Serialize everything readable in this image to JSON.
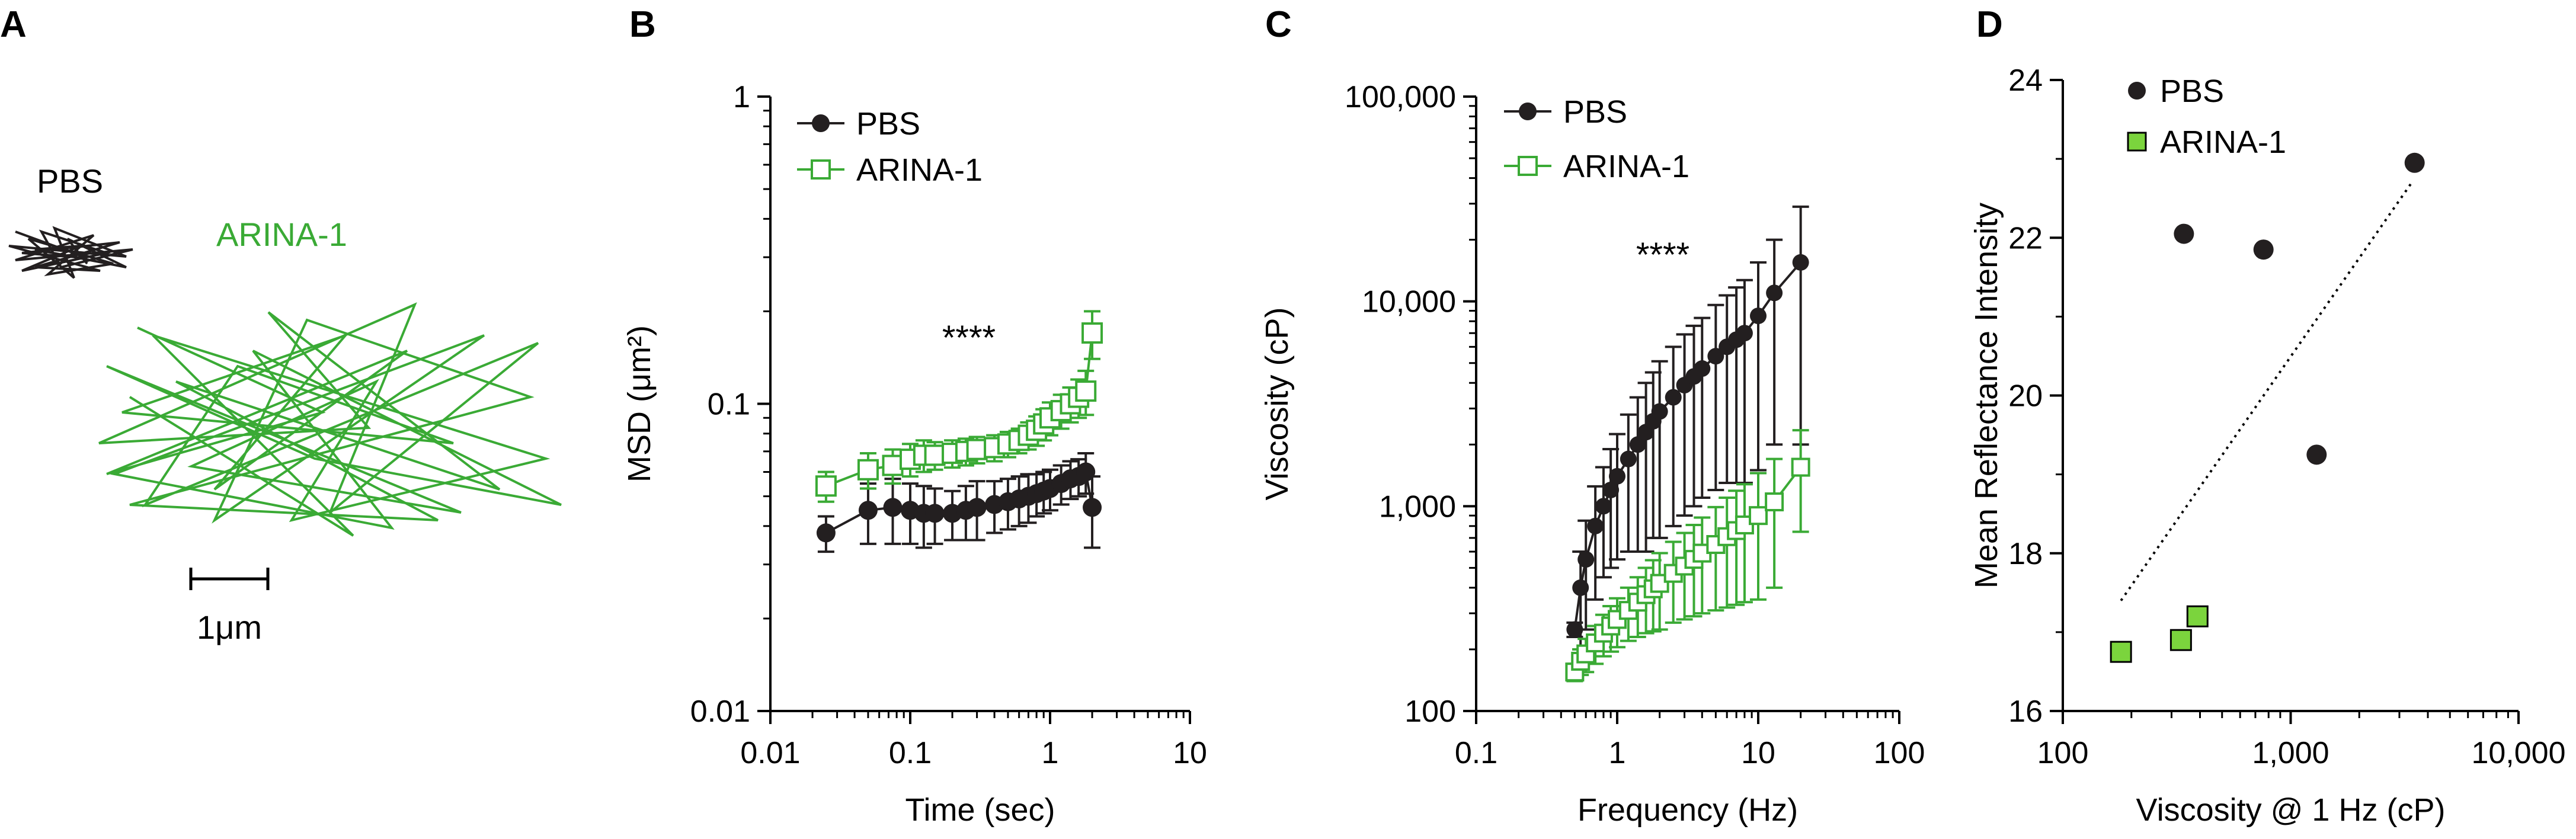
{
  "colors": {
    "pbs": "#231f20",
    "arina": "#3aaa35",
    "arina_fill": "#7bd43d",
    "axis": "#000000"
  },
  "chart_data": [
    {
      "panel": "A",
      "type": "scatter",
      "description_labels": {
        "pbs": "PBS",
        "arina": "ARINA-1",
        "scale": "1μm"
      },
      "trajectory_units": "μm",
      "pbs_path": [
        [
          0.05,
          0.05
        ],
        [
          0.6,
          0.42
        ],
        [
          0.1,
          0.35
        ],
        [
          0.85,
          0.2
        ],
        [
          0.2,
          0.55
        ],
        [
          0.7,
          0.6
        ],
        [
          0.0,
          0.25
        ],
        [
          0.9,
          0.4
        ],
        [
          0.35,
          0.0
        ],
        [
          0.5,
          0.7
        ],
        [
          0.15,
          0.15
        ],
        [
          0.8,
          0.5
        ],
        [
          0.3,
          0.65
        ],
        [
          0.65,
          0.1
        ],
        [
          0.05,
          0.45
        ],
        [
          0.95,
          0.3
        ],
        [
          0.4,
          0.55
        ],
        [
          0.25,
          0.05
        ],
        [
          0.75,
          0.35
        ],
        [
          0.1,
          0.6
        ],
        [
          0.55,
          0.25
        ],
        [
          0.2,
          0.3
        ],
        [
          0.9,
          0.55
        ],
        [
          0.45,
          0.15
        ],
        [
          0.6,
          0.5
        ]
      ],
      "arina_path": [
        [
          0.9,
          0.1
        ],
        [
          3.3,
          1.2
        ],
        [
          0.5,
          2.0
        ],
        [
          4.4,
          0.4
        ],
        [
          1.9,
          2.2
        ],
        [
          3.6,
          0.2
        ],
        [
          0.7,
          1.2
        ],
        [
          5.0,
          1.6
        ],
        [
          2.2,
          0.6
        ],
        [
          1.0,
          2.4
        ],
        [
          6.1,
          0.3
        ],
        [
          3.4,
          2.5
        ],
        [
          4.5,
          -0.2
        ],
        [
          0.4,
          1.6
        ],
        [
          3.9,
          1.4
        ],
        [
          2.6,
          -0.1
        ],
        [
          5.6,
          2.2
        ],
        [
          1.4,
          0.8
        ],
        [
          4.8,
          2.6
        ],
        [
          0.8,
          2.4
        ],
        [
          6.0,
          1.0
        ],
        [
          3.1,
          0.0
        ],
        [
          1.9,
          2.6
        ],
        [
          5.4,
          0.2
        ],
        [
          0.6,
          2.0
        ],
        [
          4.2,
          2.7
        ],
        [
          2.4,
          0.4
        ],
        [
          6.4,
          2.4
        ],
        [
          3.2,
          1.8
        ],
        [
          0.5,
          0.6
        ],
        [
          5.1,
          2.5
        ],
        [
          1.6,
          1.9
        ],
        [
          4.0,
          0.8
        ],
        [
          2.9,
          2.6
        ],
        [
          6.2,
          1.8
        ],
        [
          1.1,
          0.2
        ],
        [
          3.7,
          2.8
        ],
        [
          0.8,
          1.0
        ]
      ]
    },
    {
      "panel": "B",
      "type": "scatter",
      "title": "****",
      "xlabel": "Time (sec)",
      "ylabel": "MSD (μm²)",
      "xscale": "log",
      "yscale": "log",
      "xlim": [
        0.01,
        10
      ],
      "ylim": [
        0.01,
        1
      ],
      "xticks": [
        "0.01",
        "0.1",
        "1",
        "10"
      ],
      "yticks": [
        "0.01",
        "0.1",
        "1"
      ],
      "legend": [
        "PBS",
        "ARINA-1"
      ],
      "legend_position": "top-right",
      "series": [
        {
          "name": "PBS",
          "marker": "filled-circle",
          "x": [
            0.025,
            0.05,
            0.075,
            0.1,
            0.125,
            0.15,
            0.2,
            0.25,
            0.3,
            0.4,
            0.5,
            0.6,
            0.7,
            0.8,
            0.9,
            1.0,
            1.2,
            1.4,
            1.6,
            1.8,
            2.0
          ],
          "y": [
            0.038,
            0.045,
            0.046,
            0.045,
            0.044,
            0.044,
            0.044,
            0.045,
            0.046,
            0.047,
            0.048,
            0.049,
            0.05,
            0.051,
            0.052,
            0.053,
            0.055,
            0.057,
            0.058,
            0.06,
            0.046
          ],
          "err": [
            0.005,
            0.01,
            0.011,
            0.01,
            0.01,
            0.009,
            0.008,
            0.009,
            0.01,
            0.009,
            0.009,
            0.009,
            0.009,
            0.008,
            0.008,
            0.008,
            0.008,
            0.008,
            0.008,
            0.009,
            0.012
          ]
        },
        {
          "name": "ARINA-1",
          "marker": "open-square",
          "x": [
            0.025,
            0.05,
            0.075,
            0.1,
            0.125,
            0.15,
            0.2,
            0.25,
            0.3,
            0.4,
            0.5,
            0.6,
            0.7,
            0.8,
            0.9,
            1.0,
            1.2,
            1.4,
            1.6,
            1.8,
            2.0
          ],
          "y": [
            0.054,
            0.061,
            0.063,
            0.066,
            0.068,
            0.068,
            0.069,
            0.07,
            0.071,
            0.072,
            0.074,
            0.076,
            0.079,
            0.082,
            0.086,
            0.09,
            0.095,
            0.1,
            0.105,
            0.11,
            0.17
          ],
          "err": [
            0.006,
            0.008,
            0.008,
            0.008,
            0.008,
            0.007,
            0.007,
            0.007,
            0.007,
            0.007,
            0.007,
            0.007,
            0.008,
            0.009,
            0.01,
            0.011,
            0.012,
            0.013,
            0.015,
            0.018,
            0.03
          ]
        }
      ]
    },
    {
      "panel": "C",
      "type": "scatter",
      "title": "****",
      "xlabel": "Frequency (Hz)",
      "ylabel": "Viscosity (cP)",
      "xscale": "log",
      "yscale": "log",
      "xlim": [
        0.1,
        100
      ],
      "ylim": [
        100,
        100000
      ],
      "xticks": [
        "0.1",
        "1",
        "10",
        "100"
      ],
      "yticks": [
        "100",
        "1,000",
        "10,000",
        "100,000"
      ],
      "legend": [
        "PBS",
        "ARINA-1"
      ],
      "legend_position": "top-right",
      "series": [
        {
          "name": "PBS",
          "marker": "filled-circle",
          "x": [
            0.5,
            0.55,
            0.6,
            0.7,
            0.8,
            0.9,
            1.0,
            1.2,
            1.4,
            1.6,
            1.8,
            2.0,
            2.5,
            3.0,
            3.5,
            4.0,
            5.0,
            6.0,
            7.0,
            8.0,
            10,
            13,
            20
          ],
          "y": [
            250,
            400,
            550,
            800,
            1000,
            1200,
            1400,
            1700,
            2000,
            2300,
            2600,
            2900,
            3400,
            3900,
            4300,
            4700,
            5400,
            6000,
            6500,
            7000,
            8500,
            11000,
            15500
          ],
          "err": [
            20,
            200,
            300,
            450,
            550,
            700,
            850,
            1100,
            1400,
            1700,
            1900,
            2200,
            2600,
            3000,
            3300,
            3600,
            4200,
            4700,
            5200,
            5700,
            7000,
            9000,
            13500
          ]
        },
        {
          "name": "ARINA-1",
          "marker": "open-square",
          "x": [
            0.5,
            0.55,
            0.6,
            0.7,
            0.8,
            0.9,
            1.0,
            1.2,
            1.4,
            1.6,
            1.8,
            2.0,
            2.5,
            3.0,
            3.5,
            4.0,
            5.0,
            6.0,
            7.0,
            8.0,
            10,
            13,
            20
          ],
          "y": [
            155,
            175,
            190,
            215,
            240,
            260,
            280,
            310,
            340,
            370,
            395,
            420,
            470,
            510,
            550,
            590,
            650,
            710,
            760,
            810,
            900,
            1050,
            1550
          ],
          "err": [
            15,
            25,
            35,
            45,
            55,
            65,
            75,
            90,
            110,
            130,
            150,
            170,
            200,
            230,
            260,
            290,
            340,
            390,
            430,
            470,
            550,
            650,
            800
          ]
        }
      ]
    },
    {
      "panel": "D",
      "type": "scatter",
      "xlabel": "Viscosity @ 1 Hz (cP)",
      "ylabel": "Mean Reflectance Intensity",
      "xscale": "log",
      "xlim": [
        100,
        10000
      ],
      "ylim": [
        16,
        24
      ],
      "xticks": [
        "100",
        "1,000",
        "10,000"
      ],
      "yticks": [
        "16",
        "18",
        "20",
        "22",
        "24"
      ],
      "legend": [
        "PBS",
        "ARINA-1"
      ],
      "legend_position": "top-left",
      "trendline": {
        "x": [
          180,
          3400
        ],
        "y": [
          17.4,
          22.7
        ],
        "style": "dotted"
      },
      "series": [
        {
          "name": "PBS",
          "marker": "filled-circle",
          "x": [
            340,
            760,
            1300,
            3500
          ],
          "y": [
            22.05,
            21.85,
            19.25,
            22.95
          ]
        },
        {
          "name": "ARINA-1",
          "marker": "filled-square",
          "x": [
            180,
            330,
            390
          ],
          "y": [
            16.75,
            16.9,
            17.2
          ]
        }
      ]
    }
  ],
  "panel_labels": [
    "A",
    "B",
    "C",
    "D"
  ]
}
